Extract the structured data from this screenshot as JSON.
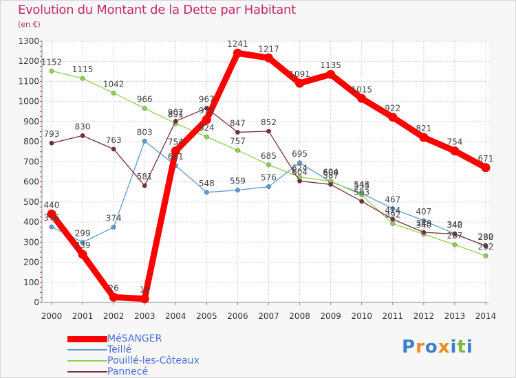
{
  "title": "Evolution du Montant de la Dette par Habitant",
  "subtitle": "(en €)",
  "logo": {
    "letters": [
      "P",
      "r",
      "o",
      "x",
      "i",
      "t",
      "i"
    ],
    "colors": [
      "#3a7fd0",
      "#f08a1c",
      "#3a7fd0",
      "#f08a1c",
      "#3a7fd0",
      "#79b83a",
      "#3a7fd0"
    ]
  },
  "chart_data": {
    "type": "line",
    "title": "Evolution du Montant de la Dette par Habitant",
    "ylabel": "(en €)",
    "xlabel": "",
    "x": [
      "2000",
      "2001",
      "2002",
      "2003",
      "2004",
      "2005",
      "2006",
      "2007",
      "2008",
      "2009",
      "2010",
      "2011",
      "2012",
      "2013",
      "2014"
    ],
    "ylim": [
      0,
      1300
    ],
    "yticks": [
      "0",
      "100",
      "200",
      "300",
      "400",
      "500",
      "600",
      "700",
      "800",
      "900",
      "1000",
      "1100",
      "1200",
      "1300"
    ],
    "grid": true,
    "legend_position": "bottom-left",
    "series": [
      {
        "name": "Teillé",
        "color": "#5b9bd5",
        "values": [
          376,
          299,
          374,
          803,
          681,
          548,
          559,
          576,
          695,
          600,
          543,
          467,
          407,
          342,
          280
        ],
        "labels": [
          "376",
          "299",
          "374",
          "803",
          "681",
          "548",
          "559",
          "576",
          "695",
          "600",
          "543",
          "467",
          "407",
          "342",
          "280"
        ]
      },
      {
        "name": "Pouillé-les-Côteaux",
        "color": "#8fd14f",
        "values": [
          1152,
          1115,
          1042,
          966,
          891,
          824,
          757,
          685,
          624,
          604,
          535,
          392,
          340,
          287,
          232
        ],
        "labels": [
          "1152",
          "1115",
          "1042",
          "966",
          "891",
          "824",
          "757",
          "685",
          "624",
          "604",
          "535",
          "392",
          "340",
          "287",
          "232"
        ]
      },
      {
        "name": "Pannecé",
        "color": "#7b2d3a",
        "values": [
          793,
          830,
          763,
          581,
          902,
          967,
          847,
          852,
          604,
          587,
          503,
          414,
          349,
          340,
          282
        ],
        "labels": [
          "793",
          "830",
          "763",
          "581",
          "902",
          "967",
          "847",
          "852",
          "604",
          "587",
          "503",
          "414",
          "349",
          "340",
          "282"
        ]
      },
      {
        "name": "MéSANGER",
        "color": "#ff0000",
        "values": [
          440,
          239,
          26,
          18,
          754,
          910,
          1241,
          1217,
          1091,
          1135,
          1015,
          922,
          821,
          754,
          671
        ],
        "labels": [
          "440",
          "239",
          "26",
          "18",
          "754",
          "910",
          "1241",
          "1217",
          "1091",
          "1135",
          "1015",
          "922",
          "821",
          "754",
          "671"
        ]
      }
    ],
    "legend_order": [
      "MéSANGER",
      "Teillé",
      "Pouillé-les-Côteaux",
      "Pannecé"
    ]
  }
}
